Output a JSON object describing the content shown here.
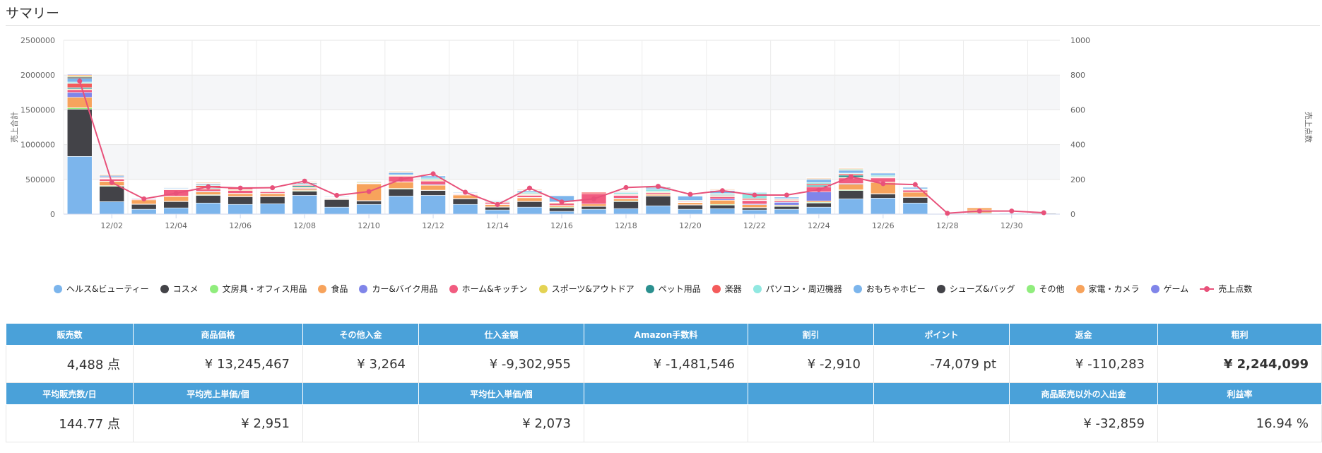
{
  "page": {
    "title": "サマリー"
  },
  "chart_data": {
    "type": "bar",
    "stacked": true,
    "x_tick_labels": [
      "12/02",
      "12/04",
      "12/06",
      "12/08",
      "12/10",
      "12/12",
      "12/14",
      "12/16",
      "12/18",
      "12/20",
      "12/22",
      "12/24",
      "12/26",
      "12/28",
      "12/30"
    ],
    "categories": [
      "12/01",
      "12/02",
      "12/03",
      "12/04",
      "12/05",
      "12/06",
      "12/07",
      "12/08",
      "12/09",
      "12/10",
      "12/11",
      "12/12",
      "12/13",
      "12/14",
      "12/15",
      "12/16",
      "12/17",
      "12/18",
      "12/19",
      "12/20",
      "12/21",
      "12/22",
      "12/23",
      "12/24",
      "12/25",
      "12/26",
      "12/27",
      "12/28",
      "12/29",
      "12/30",
      "12/31"
    ],
    "ylabel_left": "売上合計",
    "ylabel_right": "売上点数",
    "ylim_left": [
      0,
      2500000
    ],
    "ylim_right": [
      0,
      1000
    ],
    "yticks_left": [
      "0",
      "500000",
      "1000000",
      "1500000",
      "2000000",
      "2500000"
    ],
    "yticks_right": [
      "0",
      "200",
      "400",
      "600",
      "800",
      "1000"
    ],
    "series": [
      {
        "name": "ヘルス&ビューティー",
        "color": "#7cb5ec",
        "values": [
          830000,
          180000,
          70000,
          90000,
          160000,
          140000,
          150000,
          270000,
          100000,
          140000,
          260000,
          270000,
          140000,
          60000,
          100000,
          40000,
          70000,
          80000,
          120000,
          70000,
          80000,
          60000,
          70000,
          100000,
          220000,
          230000,
          160000,
          0,
          10000,
          10000,
          0
        ]
      },
      {
        "name": "コスメ",
        "color": "#434348",
        "values": [
          680000,
          220000,
          70000,
          90000,
          110000,
          110000,
          100000,
          60000,
          110000,
          50000,
          100000,
          70000,
          80000,
          40000,
          80000,
          50000,
          40000,
          100000,
          140000,
          60000,
          50000,
          30000,
          40000,
          60000,
          120000,
          60000,
          80000,
          0,
          10000,
          0,
          10000
        ]
      },
      {
        "name": "文房具・オフィス用品",
        "color": "#90ed7d",
        "values": [
          20000,
          10000,
          5000,
          5000,
          10000,
          5000,
          5000,
          10000,
          5000,
          5000,
          10000,
          5000,
          5000,
          5000,
          5000,
          10000,
          5000,
          10000,
          5000,
          5000,
          10000,
          5000,
          10000,
          10000,
          10000,
          5000,
          5000,
          0,
          0,
          0,
          0
        ]
      },
      {
        "name": "食品",
        "color": "#f7a35c",
        "values": [
          150000,
          60000,
          60000,
          70000,
          40000,
          40000,
          40000,
          20000,
          10000,
          240000,
          90000,
          70000,
          50000,
          30000,
          50000,
          20000,
          30000,
          30000,
          20000,
          30000,
          60000,
          40000,
          10000,
          20000,
          80000,
          160000,
          70000,
          0,
          40000,
          0,
          0
        ]
      },
      {
        "name": "カー&バイク用品",
        "color": "#8085e9",
        "values": [
          70000,
          5000,
          0,
          5000,
          10000,
          5000,
          5000,
          10000,
          5000,
          5000,
          5000,
          10000,
          5000,
          5000,
          5000,
          5000,
          0,
          10000,
          5000,
          5000,
          20000,
          10000,
          40000,
          130000,
          10000,
          5000,
          0,
          0,
          0,
          0,
          0
        ]
      },
      {
        "name": "ホーム&キッチン",
        "color": "#f15c80",
        "values": [
          40000,
          30000,
          10000,
          90000,
          30000,
          40000,
          20000,
          10000,
          5000,
          5000,
          80000,
          50000,
          10000,
          20000,
          30000,
          30000,
          150000,
          40000,
          20000,
          10000,
          30000,
          50000,
          20000,
          70000,
          80000,
          60000,
          30000,
          0,
          0,
          0,
          0
        ]
      },
      {
        "name": "スポーツ&アウトドア",
        "color": "#e4d354",
        "values": [
          10000,
          5000,
          5000,
          5000,
          10000,
          10000,
          5000,
          10000,
          5000,
          10000,
          10000,
          10000,
          5000,
          5000,
          10000,
          10000,
          0,
          5000,
          10000,
          5000,
          10000,
          5000,
          10000,
          5000,
          10000,
          5000,
          5000,
          0,
          0,
          0,
          0
        ]
      },
      {
        "name": "ペット用品",
        "color": "#2b908f",
        "values": [
          20000,
          5000,
          0,
          5000,
          10000,
          5000,
          5000,
          20000,
          0,
          0,
          5000,
          5000,
          5000,
          0,
          5000,
          0,
          0,
          5000,
          5000,
          0,
          10000,
          5000,
          5000,
          20000,
          30000,
          5000,
          0,
          0,
          0,
          0,
          0
        ]
      },
      {
        "name": "楽器",
        "color": "#f45b5b",
        "values": [
          60000,
          10000,
          0,
          5000,
          30000,
          20000,
          10000,
          10000,
          0,
          0,
          0,
          10000,
          0,
          10000,
          10000,
          5000,
          20000,
          10000,
          0,
          5000,
          10000,
          20000,
          10000,
          20000,
          20000,
          10000,
          5000,
          0,
          0,
          0,
          0
        ]
      },
      {
        "name": "パソコン・周辺機器",
        "color": "#91e8e1",
        "values": [
          20000,
          5000,
          5000,
          5000,
          10000,
          5000,
          5000,
          10000,
          5000,
          5000,
          5000,
          20000,
          5000,
          10000,
          20000,
          5000,
          5000,
          20000,
          30000,
          10000,
          20000,
          80000,
          10000,
          20000,
          10000,
          20000,
          10000,
          0,
          0,
          0,
          0
        ]
      },
      {
        "name": "おもちゃホビー",
        "color": "#7cb5ec",
        "values": [
          50000,
          20000,
          10000,
          10000,
          10000,
          10000,
          5000,
          10000,
          10000,
          10000,
          30000,
          30000,
          10000,
          10000,
          20000,
          90000,
          0,
          10000,
          20000,
          60000,
          40000,
          10000,
          20000,
          40000,
          40000,
          30000,
          20000,
          0,
          0,
          0,
          0
        ]
      },
      {
        "name": "シューズ&バッグ",
        "color": "#434348",
        "values": [
          20000,
          10000,
          5000,
          5000,
          10000,
          5000,
          5000,
          10000,
          5000,
          5000,
          10000,
          5000,
          5000,
          5000,
          5000,
          5000,
          0,
          5000,
          10000,
          5000,
          5000,
          5000,
          5000,
          10000,
          10000,
          5000,
          5000,
          0,
          0,
          0,
          0
        ]
      },
      {
        "name": "その他",
        "color": "#90ed7d",
        "values": [
          10000,
          5000,
          0,
          5000,
          5000,
          5000,
          5000,
          5000,
          0,
          0,
          5000,
          5000,
          0,
          0,
          5000,
          0,
          0,
          5000,
          5000,
          0,
          5000,
          5000,
          5000,
          5000,
          10000,
          5000,
          0,
          0,
          0,
          0,
          0
        ]
      },
      {
        "name": "家電・カメラ",
        "color": "#f7a35c",
        "values": [
          20000,
          10000,
          5000,
          5000,
          10000,
          5000,
          5000,
          10000,
          5000,
          5000,
          10000,
          10000,
          5000,
          5000,
          10000,
          5000,
          5000,
          10000,
          5000,
          5000,
          10000,
          5000,
          5000,
          10000,
          10000,
          10000,
          5000,
          0,
          30000,
          0,
          0
        ]
      },
      {
        "name": "ゲーム",
        "color": "#8085e9",
        "values": [
          10000,
          5000,
          0,
          5000,
          5000,
          5000,
          5000,
          5000,
          0,
          0,
          5000,
          5000,
          0,
          0,
          5000,
          0,
          0,
          5000,
          5000,
          0,
          5000,
          5000,
          5000,
          5000,
          5000,
          5000,
          0,
          0,
          0,
          0,
          0
        ]
      }
    ],
    "line_series": {
      "name": "売上点数",
      "color": "#e8517a",
      "axis": "right",
      "values": [
        765,
        182,
        88,
        120,
        157,
        150,
        152,
        190,
        108,
        130,
        200,
        232,
        126,
        55,
        150,
        70,
        88,
        153,
        160,
        114,
        135,
        110,
        110,
        140,
        215,
        175,
        170,
        5,
        18,
        18,
        8
      ]
    }
  },
  "summary_table": {
    "row1_headers": [
      "販売数",
      "商品価格",
      "その他入金",
      "仕入金額",
      "Amazon手数料",
      "割引",
      "ポイント",
      "返金",
      "粗利"
    ],
    "row1_values": [
      "4,488 点",
      "¥ 13,245,467",
      "¥ 3,264",
      "¥ -9,302,955",
      "¥ -1,481,546",
      "¥ -2,910",
      "-74,079 pt",
      "¥ -110,283",
      "¥ 2,244,099"
    ],
    "row2_headers": [
      "平均販売数/日",
      "平均売上単価/個",
      "",
      "平均仕入単価/個",
      "",
      "",
      "",
      "商品販売以外の入出金",
      "利益率"
    ],
    "row2_values": [
      "144.77 点",
      "¥ 2,951",
      "",
      "¥ 2,073",
      "",
      "",
      "",
      "¥ -32,859",
      "16.94 %"
    ]
  }
}
